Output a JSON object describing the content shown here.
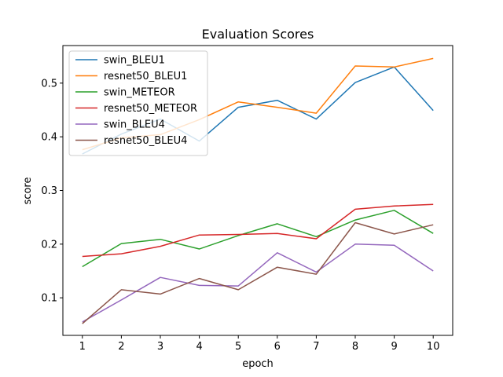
{
  "chart_data": {
    "type": "line",
    "title": "Evaluation Scores",
    "xlabel": "epoch",
    "ylabel": "score",
    "x": [
      1,
      2,
      3,
      4,
      5,
      6,
      7,
      8,
      9,
      10
    ],
    "xlim": [
      0.5,
      10.5
    ],
    "ylim": [
      0.03,
      0.57
    ],
    "xticks": [
      1,
      2,
      3,
      4,
      5,
      6,
      7,
      8,
      9,
      10
    ],
    "yticks": [
      0.1,
      0.2,
      0.3,
      0.4,
      0.5
    ],
    "ytick_labels": [
      "0.1",
      "0.2",
      "0.3",
      "0.4",
      "0.5"
    ],
    "grid": false,
    "legend_placement": "top-left",
    "series": [
      {
        "name": "swin_BLEU1",
        "color": "#1f77b4",
        "values": [
          0.368,
          0.405,
          0.433,
          0.392,
          0.455,
          0.468,
          0.433,
          0.501,
          0.53,
          0.449
        ]
      },
      {
        "name": "resnet50_BLEU1",
        "color": "#ff7f0e",
        "values": [
          0.376,
          0.398,
          0.404,
          0.432,
          0.465,
          0.455,
          0.444,
          0.532,
          0.53,
          0.546
        ]
      },
      {
        "name": "swin_METEOR",
        "color": "#2ca02c",
        "values": [
          0.158,
          0.201,
          0.209,
          0.191,
          0.216,
          0.238,
          0.214,
          0.245,
          0.263,
          0.22
        ]
      },
      {
        "name": "resnet50_METEOR",
        "color": "#d62728",
        "values": [
          0.177,
          0.182,
          0.196,
          0.217,
          0.218,
          0.22,
          0.21,
          0.265,
          0.271,
          0.274
        ]
      },
      {
        "name": "swin_BLEU4",
        "color": "#9467bd",
        "values": [
          0.055,
          0.096,
          0.138,
          0.123,
          0.122,
          0.184,
          0.148,
          0.2,
          0.198,
          0.15
        ]
      },
      {
        "name": "resnet50_BLEU4",
        "color": "#8c564b",
        "values": [
          0.052,
          0.115,
          0.107,
          0.136,
          0.115,
          0.157,
          0.144,
          0.24,
          0.219,
          0.236
        ]
      }
    ]
  }
}
